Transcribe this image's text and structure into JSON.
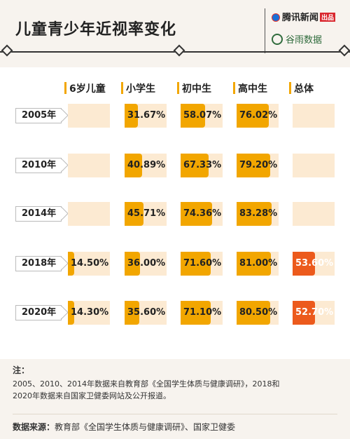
{
  "header": {
    "title": "儿童青少年近视率变化",
    "brand_primary": "腾讯新闻",
    "brand_primary_tag": "出品",
    "brand_secondary": "谷雨数据"
  },
  "chart_data": {
    "type": "table",
    "title": "儿童青少年近视率变化",
    "columns": [
      "6岁儿童",
      "小学生",
      "初中生",
      "高中生",
      "总体"
    ],
    "rows": [
      {
        "year": "2005年",
        "values": [
          null,
          31.67,
          58.07,
          76.02,
          null
        ],
        "labels": [
          "",
          "31.67%",
          "58.07%",
          "76.02%",
          ""
        ]
      },
      {
        "year": "2010年",
        "values": [
          null,
          40.89,
          67.33,
          79.2,
          null
        ],
        "labels": [
          "",
          "40.89%",
          "67.33%",
          "79.20%",
          ""
        ]
      },
      {
        "year": "2014年",
        "values": [
          null,
          45.71,
          74.36,
          83.28,
          null
        ],
        "labels": [
          "",
          "45.71%",
          "74.36%",
          "83.28%",
          ""
        ]
      },
      {
        "year": "2018年",
        "values": [
          14.5,
          36.0,
          71.6,
          81.0,
          53.6
        ],
        "labels": [
          "14.50%",
          "36.00%",
          "71.60%",
          "81.00%",
          "53.60%"
        ]
      },
      {
        "year": "2020年",
        "values": [
          14.3,
          35.6,
          71.1,
          80.5,
          52.7
        ],
        "labels": [
          "14.30%",
          "35.60%",
          "71.10%",
          "80.50%",
          "52.70%"
        ]
      }
    ],
    "colors": {
      "bar": "#f2a600",
      "overall_bar": "#ec5a1c",
      "cell_background": "#fcead2"
    },
    "value_range": [
      0,
      100
    ]
  },
  "notes": {
    "title": "注：",
    "line1": "2005、2010、2014年数据来自教育部《全国学生体质与健康调研》，2018和",
    "line2": "2020年数据来自国家卫健委网站及公开报道。"
  },
  "source": {
    "label": "数据来源：",
    "text": "教育部《全国学生体质与健康调研》、国家卫健委"
  }
}
